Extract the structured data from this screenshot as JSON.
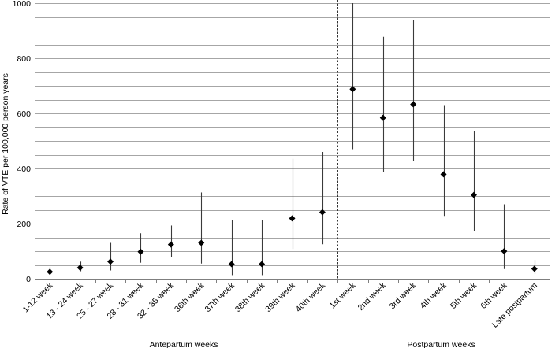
{
  "chart_data": {
    "type": "scatter",
    "ylabel": "Rate of VTE per 100,000 person years",
    "xlabel": "",
    "ylim": [
      0,
      1000
    ],
    "yticks": [
      0,
      200,
      400,
      600,
      800,
      1000
    ],
    "grid": "horizontal lines every 50",
    "categories": [
      "1-12 week",
      "13 - 24 week",
      "25 - 27 week",
      "28 - 31 week",
      "32 - 35 week",
      "36th week",
      "37th week",
      "38th week",
      "39th week",
      "40th week",
      "1st week",
      "2nd week",
      "3rd week",
      "4th week",
      "5th week",
      "6th week",
      "Late postpartum"
    ],
    "values": [
      25,
      40,
      62,
      98,
      124,
      130,
      53,
      53,
      219,
      241,
      688,
      584,
      633,
      379,
      304,
      100,
      36
    ],
    "lower": [
      15,
      27,
      30,
      58,
      78,
      55,
      13,
      13,
      108,
      125,
      470,
      388,
      428,
      228,
      172,
      35,
      18
    ],
    "upper": [
      42,
      62,
      130,
      165,
      193,
      313,
      213,
      213,
      435,
      460,
      1000,
      878,
      937,
      630,
      535,
      270,
      68
    ],
    "groups": [
      {
        "label": "Antepartum weeks",
        "from": 0,
        "to": 9
      },
      {
        "label": "Postpartum weeks",
        "from": 10,
        "to": 16
      }
    ]
  }
}
